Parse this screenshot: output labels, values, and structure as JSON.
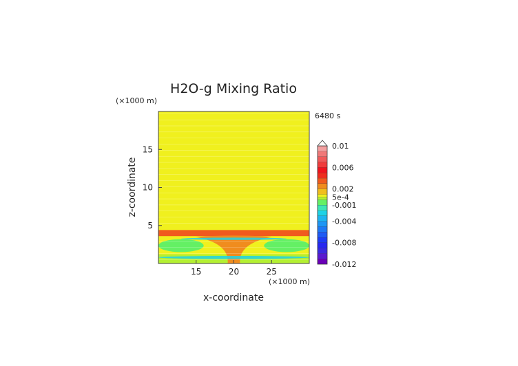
{
  "chart_data": {
    "type": "heatmap",
    "title": "H2O-g Mixing Ratio",
    "xlabel": "x-coordinate",
    "ylabel": "z-coordinate",
    "x_unit_label": "(×1000 m)",
    "y_unit_label": "(×1000 m)",
    "time_label": "6480 s",
    "xlim": [
      10,
      30
    ],
    "ylim": [
      0,
      20
    ],
    "x_ticks": [
      {
        "value": 15,
        "label": "15"
      },
      {
        "value": 20,
        "label": "20"
      },
      {
        "value": 25,
        "label": "25"
      }
    ],
    "y_ticks": [
      {
        "value": 5,
        "label": "5"
      },
      {
        "value": 10,
        "label": "10"
      },
      {
        "value": 15,
        "label": "15"
      }
    ],
    "colorbar": {
      "range": [
        -0.012,
        0.01
      ],
      "extend_top": true,
      "levels": [
        {
          "lo": -0.012,
          "hi": -0.011,
          "color": "#6a00b8"
        },
        {
          "lo": -0.011,
          "hi": -0.01,
          "color": "#5a1ad0"
        },
        {
          "lo": -0.01,
          "hi": -0.009,
          "color": "#3a2ae0"
        },
        {
          "lo": -0.009,
          "hi": -0.008,
          "color": "#2828f0"
        },
        {
          "lo": -0.008,
          "hi": -0.007,
          "color": "#1e3cf5"
        },
        {
          "lo": -0.007,
          "hi": -0.006,
          "color": "#1e5af5"
        },
        {
          "lo": -0.006,
          "hi": -0.005,
          "color": "#1e78f5"
        },
        {
          "lo": -0.005,
          "hi": -0.004,
          "color": "#1e96f5"
        },
        {
          "lo": -0.004,
          "hi": -0.003,
          "color": "#1eb4f0"
        },
        {
          "lo": -0.003,
          "hi": -0.002,
          "color": "#1ed2e6"
        },
        {
          "lo": -0.002,
          "hi": -0.001,
          "color": "#3ce6b4"
        },
        {
          "lo": -0.001,
          "hi": 0.0,
          "color": "#64f064"
        },
        {
          "lo": 0.0,
          "hi": 0.0005,
          "color": "#b4f032"
        },
        {
          "lo": 0.0005,
          "hi": 0.001,
          "color": "#f0f01e"
        },
        {
          "lo": 0.001,
          "hi": 0.002,
          "color": "#f0be1e"
        },
        {
          "lo": 0.002,
          "hi": 0.003,
          "color": "#f08c1e"
        },
        {
          "lo": 0.003,
          "hi": 0.004,
          "color": "#f05a1e"
        },
        {
          "lo": 0.004,
          "hi": 0.005,
          "color": "#f02d1e"
        },
        {
          "lo": 0.005,
          "hi": 0.006,
          "color": "#f0141e"
        },
        {
          "lo": 0.006,
          "hi": 0.007,
          "color": "#f03c3c"
        },
        {
          "lo": 0.007,
          "hi": 0.008,
          "color": "#f05a5a"
        },
        {
          "lo": 0.008,
          "hi": 0.009,
          "color": "#f07878"
        },
        {
          "lo": 0.009,
          "hi": 0.01,
          "color": "#f4a0a0"
        }
      ],
      "tick_labels": [
        {
          "value": 0.01,
          "label": "0.01"
        },
        {
          "value": 0.006,
          "label": "0.006"
        },
        {
          "value": 0.002,
          "label": "0.002"
        },
        {
          "value": 0.0005,
          "label": "5e-4"
        },
        {
          "value": -0.001,
          "label": "-0.001"
        },
        {
          "value": -0.004,
          "label": "-0.004"
        },
        {
          "value": -0.008,
          "label": "-0.008"
        },
        {
          "value": -0.012,
          "label": "-0.012"
        }
      ]
    },
    "field_regions": [
      {
        "kind": "background",
        "value": 0.0008
      },
      {
        "kind": "band",
        "z": [
          3.6,
          4.4
        ],
        "value": 0.0035
      },
      {
        "kind": "band",
        "z": [
          0,
          1.2
        ],
        "value": 0.0002
      },
      {
        "kind": "plume",
        "x": [
          15,
          25
        ],
        "z": [
          0,
          3.5
        ],
        "value": 0.0025
      },
      {
        "kind": "wing",
        "x": [
          10,
          16
        ],
        "z": [
          1.5,
          3.2
        ],
        "value": -0.0005
      },
      {
        "kind": "wing",
        "x": [
          24,
          30
        ],
        "z": [
          1.5,
          3.2
        ],
        "value": -0.0005
      },
      {
        "kind": "streak",
        "x": [
          10,
          30
        ],
        "z": [
          0.6,
          1.0
        ],
        "value": -0.0025
      },
      {
        "kind": "streak",
        "x": [
          13,
          27
        ],
        "z": [
          3.1,
          3.4
        ],
        "value": -0.0025
      }
    ]
  }
}
